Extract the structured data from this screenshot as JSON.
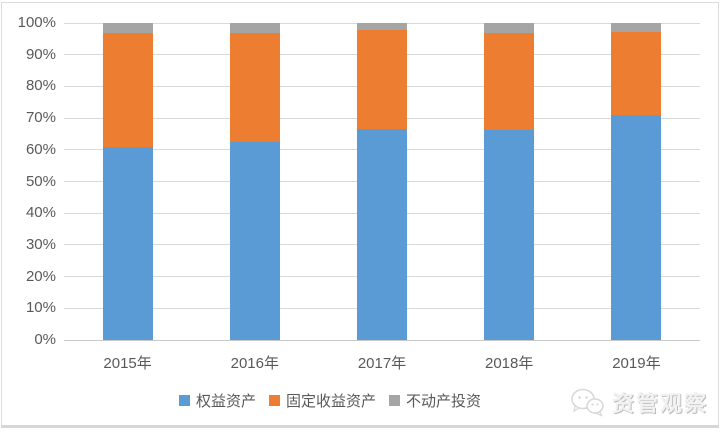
{
  "watermark": {
    "text": "资管观察",
    "icon": "wechat-logo-icon"
  },
  "chart_data": {
    "type": "bar",
    "stacked": true,
    "percent_stacked": true,
    "title": "",
    "xlabel": "",
    "ylabel": "",
    "categories": [
      "2015年",
      "2016年",
      "2017年",
      "2018年",
      "2019年"
    ],
    "series": [
      {
        "name": "权益资产",
        "color": "#5B9BD5",
        "values": [
          61.0,
          62.5,
          66.5,
          66.3,
          71.0
        ]
      },
      {
        "name": "固定收益资产",
        "color": "#ED7D31",
        "values": [
          36.0,
          34.5,
          31.2,
          30.7,
          26.3
        ]
      },
      {
        "name": "不动产投资",
        "color": "#A5A5A5",
        "values": [
          3.0,
          3.0,
          2.3,
          3.0,
          2.7
        ]
      }
    ],
    "ylim": [
      0,
      100
    ],
    "yticks": [
      "0%",
      "10%",
      "20%",
      "30%",
      "40%",
      "50%",
      "60%",
      "70%",
      "80%",
      "90%",
      "100%"
    ],
    "grid": true,
    "legend_position": "bottom",
    "axis_text_color": "#595959",
    "gridline_color": "#d9d9d9"
  }
}
